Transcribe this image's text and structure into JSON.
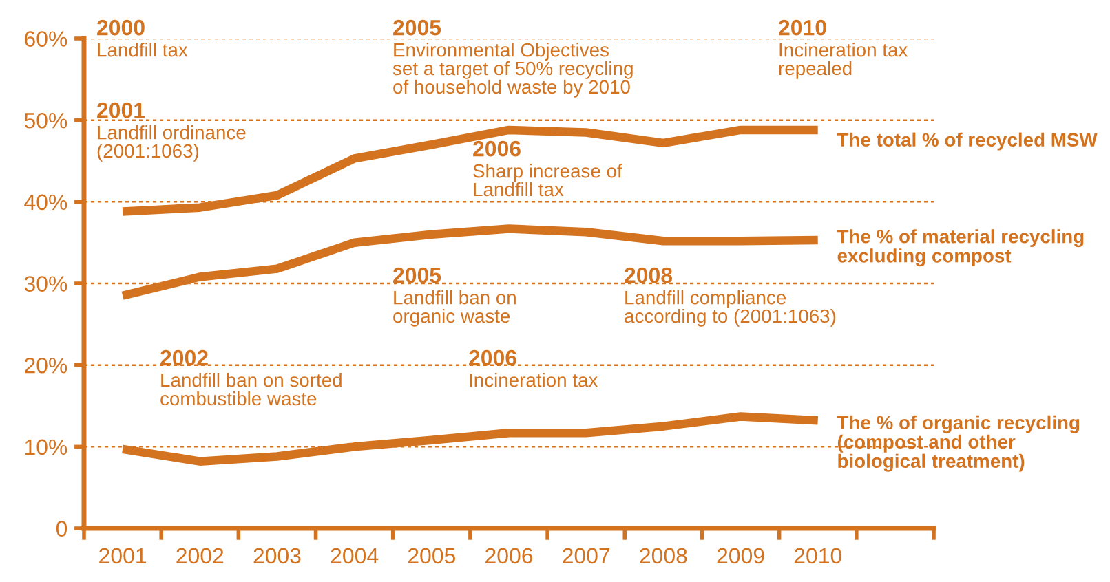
{
  "chart_data": {
    "type": "line",
    "categories": [
      "2001",
      "2002",
      "2003",
      "2004",
      "2005",
      "2006",
      "2007",
      "2008",
      "2009",
      "2010"
    ],
    "ylim": [
      0,
      60
    ],
    "yticks": [
      {
        "value": 0,
        "label": "0"
      },
      {
        "value": 10,
        "label": "10%"
      },
      {
        "value": 20,
        "label": "20%"
      },
      {
        "value": 30,
        "label": "30%"
      },
      {
        "value": 40,
        "label": "40%"
      },
      {
        "value": 50,
        "label": "50%"
      },
      {
        "value": 60,
        "label": "60%"
      }
    ],
    "grid": "y",
    "legend": false,
    "line_style": "solid",
    "marker": "none",
    "series": [
      {
        "name": "The total % of recycled MSW",
        "color": "#d4731f",
        "values": [
          38.8,
          39.3,
          40.8,
          45.3,
          47,
          48.8,
          48.5,
          47.2,
          48.8,
          48.8
        ]
      },
      {
        "name": "The % of material recycling\nexcluding compost",
        "color": "#d4731f",
        "values": [
          28.5,
          30.8,
          31.8,
          35,
          36,
          36.7,
          36.3,
          35.2,
          35.2,
          35.3
        ]
      },
      {
        "name": "The % of organic recycling\n(compost and other\nbiological treatment)",
        "color": "#d4731f",
        "values": [
          9.7,
          8.2,
          8.8,
          10,
          10.8,
          11.7,
          11.7,
          12.5,
          13.7,
          13.2
        ]
      }
    ],
    "annotations": [
      "2000\nLandfill tax",
      "2005\nEnvironmental Objectives\nset a target of 50% recycling\nof household waste by 2010",
      "2010\nIncineration tax\nrepealed",
      "2001\nLandfill ordinance\n(2001:1063)",
      "2006\nSharp increase of\nLandfill tax",
      "2005\nLandfill ban on\norganic waste",
      "2008\nLandfill compliance\naccording to (2001:1063)",
      "2002\nLandfill ban on sorted\ncombustible waste",
      "2006\nIncineration tax"
    ]
  }
}
